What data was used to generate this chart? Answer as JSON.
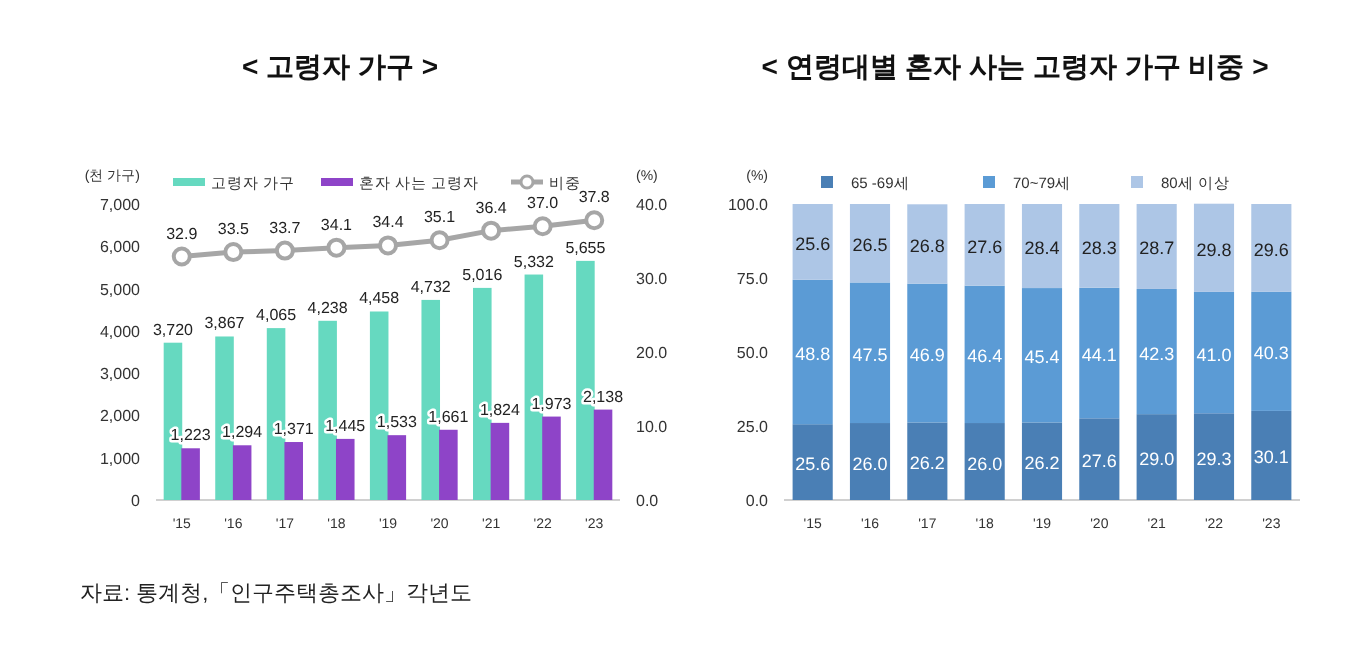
{
  "chart_data": [
    {
      "type": "bar",
      "title": "< 고령자 가구 >",
      "categories": [
        "'15",
        "'16",
        "'17",
        "'18",
        "'19",
        "'20",
        "'21",
        "'22",
        "'23"
      ],
      "ylabel": "(천 가구)",
      "y2label": "(%)",
      "ylim": [
        0,
        7000
      ],
      "yticks": [
        {
          "value": 0,
          "label": "0"
        },
        {
          "value": 1000,
          "label": "1,000"
        },
        {
          "value": 2000,
          "label": "2,000"
        },
        {
          "value": 3000,
          "label": "3,000"
        },
        {
          "value": 4000,
          "label": "4,000"
        },
        {
          "value": 5000,
          "label": "5,000"
        },
        {
          "value": 6000,
          "label": "6,000"
        },
        {
          "value": 7000,
          "label": "7,000"
        }
      ],
      "y2lim": [
        0,
        40
      ],
      "y2ticks": [
        {
          "value": 0,
          "label": "0.0"
        },
        {
          "value": 10,
          "label": "10.0"
        },
        {
          "value": 20,
          "label": "20.0"
        },
        {
          "value": 30,
          "label": "30.0"
        },
        {
          "value": 40,
          "label": "40.0"
        }
      ],
      "legend": "top",
      "annotations": [
        "자료: 통계청,「인구주택총조사」각년도"
      ],
      "series": [
        {
          "name": "고령자 가구",
          "color": "#66d9c0",
          "values": [
            3720,
            3867,
            4065,
            4238,
            4458,
            4732,
            5016,
            5332,
            5655
          ],
          "value_labels": [
            "3,720",
            "3,867",
            "4,065",
            "4,238",
            "4,458",
            "4,732",
            "5,016",
            "5,332",
            "5,655"
          ]
        },
        {
          "name": "혼자 사는 고령자",
          "color": "#8e44c8",
          "values": [
            1223,
            1294,
            1371,
            1445,
            1533,
            1661,
            1824,
            1973,
            2138
          ],
          "value_labels": [
            "1,223",
            "1,294",
            "1,371",
            "1,445",
            "1,533",
            "1,661",
            "1,824",
            "1,973",
            "2,138"
          ]
        },
        {
          "name": "비중",
          "type": "line",
          "axis": "y2",
          "marker": "circle",
          "color": "#a6a6a6",
          "values": [
            32.9,
            33.5,
            33.7,
            34.1,
            34.4,
            35.1,
            36.4,
            37.0,
            37.8
          ],
          "value_labels": [
            "32.9",
            "33.5",
            "33.7",
            "34.1",
            "34.4",
            "35.1",
            "36.4",
            "37.0",
            "37.8"
          ]
        }
      ]
    },
    {
      "type": "bar",
      "stacked": true,
      "title": "< 연령대별 혼자 사는 고령자 가구 비중 >",
      "categories": [
        "'15",
        "'16",
        "'17",
        "'18",
        "'19",
        "'20",
        "'21",
        "'22",
        "'23"
      ],
      "ylabel": "(%)",
      "ylim": [
        0,
        100
      ],
      "yticks": [
        {
          "value": 0,
          "label": "0.0"
        },
        {
          "value": 25,
          "label": "25.0"
        },
        {
          "value": 50,
          "label": "50.0"
        },
        {
          "value": 75,
          "label": "75.0"
        },
        {
          "value": 100,
          "label": "100.0"
        }
      ],
      "legend": "top",
      "series": [
        {
          "name": "65 -69세",
          "color": "#4a7fb5",
          "values": [
            25.6,
            26.0,
            26.2,
            26.0,
            26.2,
            27.6,
            29.0,
            29.3,
            30.1
          ],
          "value_labels": [
            "25.6",
            "26.0",
            "26.2",
            "26.0",
            "26.2",
            "27.6",
            "29.0",
            "29.3",
            "30.1"
          ]
        },
        {
          "name": "70~79세",
          "color": "#5b9bd5",
          "values": [
            48.8,
            47.5,
            46.9,
            46.4,
            45.4,
            44.1,
            42.3,
            41.0,
            40.3
          ],
          "value_labels": [
            "48.8",
            "47.5",
            "46.9",
            "46.4",
            "45.4",
            "44.1",
            "42.3",
            "41.0",
            "40.3"
          ]
        },
        {
          "name": "80세 이상",
          "color": "#adc6e6",
          "values": [
            25.6,
            26.5,
            26.8,
            27.6,
            28.4,
            28.3,
            28.7,
            29.8,
            29.6
          ],
          "value_labels": [
            "25.6",
            "26.5",
            "26.8",
            "27.6",
            "28.4",
            "28.3",
            "28.7",
            "29.8",
            "29.6"
          ]
        }
      ]
    }
  ]
}
